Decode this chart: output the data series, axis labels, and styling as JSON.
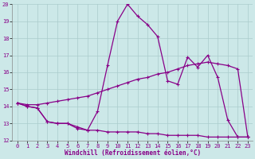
{
  "xlabel": "Windchill (Refroidissement éolien,°C)",
  "xlim": [
    -0.5,
    23.5
  ],
  "ylim": [
    12,
    20
  ],
  "yticks": [
    12,
    13,
    14,
    15,
    16,
    17,
    18,
    19,
    20
  ],
  "xticks": [
    0,
    1,
    2,
    3,
    4,
    5,
    6,
    7,
    8,
    9,
    10,
    11,
    12,
    13,
    14,
    15,
    16,
    17,
    18,
    19,
    20,
    21,
    22,
    23
  ],
  "bg_color": "#cce8e8",
  "line_color": "#880088",
  "grid_color": "#aacccc",
  "line1_x": [
    0,
    1,
    2,
    3,
    4,
    5,
    6,
    7,
    8,
    9,
    10,
    11,
    12,
    13,
    14,
    15,
    16,
    17,
    18,
    19,
    20,
    21,
    22,
    23
  ],
  "line1_y": [
    14.2,
    14.0,
    13.9,
    13.1,
    13.0,
    13.0,
    12.7,
    12.6,
    13.7,
    16.4,
    19.0,
    20.0,
    19.3,
    18.8,
    18.1,
    15.5,
    15.3,
    16.9,
    16.3,
    17.0,
    15.7,
    13.2,
    12.2,
    12.2
  ],
  "line2_x": [
    0,
    1,
    2,
    3,
    4,
    5,
    6,
    7,
    8,
    9,
    10,
    11,
    12,
    13,
    14,
    15,
    16,
    17,
    18,
    19,
    20,
    21,
    22,
    23
  ],
  "line2_y": [
    14.2,
    14.1,
    14.1,
    14.2,
    14.3,
    14.4,
    14.5,
    14.6,
    14.8,
    15.0,
    15.2,
    15.4,
    15.6,
    15.7,
    15.9,
    16.0,
    16.2,
    16.4,
    16.5,
    16.6,
    16.5,
    16.4,
    16.2,
    12.2
  ],
  "line3_x": [
    0,
    1,
    2,
    3,
    4,
    5,
    6,
    7,
    8,
    9,
    10,
    11,
    12,
    13,
    14,
    15,
    16,
    17,
    18,
    19,
    20,
    21,
    22,
    23
  ],
  "line3_y": [
    14.2,
    14.0,
    13.9,
    13.1,
    13.0,
    13.0,
    12.8,
    12.6,
    12.6,
    12.5,
    12.5,
    12.5,
    12.5,
    12.4,
    12.4,
    12.3,
    12.3,
    12.3,
    12.3,
    12.2,
    12.2,
    12.2,
    12.2,
    12.2
  ]
}
